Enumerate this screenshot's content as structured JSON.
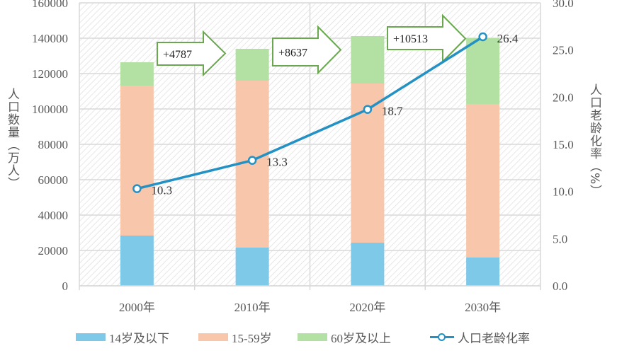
{
  "chart_data": {
    "type": "bar",
    "subtype": "stacked-bar-with-line",
    "categories": [
      "2000年",
      "2010年",
      "2020年",
      "2030年"
    ],
    "series": [
      {
        "name": "14岁及以下",
        "type": "bar",
        "axis": "left",
        "color": "#7EC8E8",
        "values": [
          28400,
          21600,
          24400,
          16000
        ]
      },
      {
        "name": "15-59岁",
        "type": "bar",
        "axis": "left",
        "color": "#F7C6AB",
        "values": [
          84800,
          94400,
          90000,
          86800
        ]
      },
      {
        "name": "60岁及以上",
        "type": "bar",
        "axis": "left",
        "color": "#B3E0A3",
        "values": [
          13200,
          18000,
          26800,
          37200
        ]
      },
      {
        "name": "人口老龄化率",
        "type": "line",
        "axis": "right",
        "color": "#2491C4",
        "values": [
          10.3,
          13.3,
          18.7,
          26.4
        ]
      }
    ],
    "annotations": [
      {
        "text": "+4787",
        "between": [
          "2000年",
          "2010年"
        ]
      },
      {
        "text": "+8637",
        "between": [
          "2010年",
          "2020年"
        ]
      },
      {
        "text": "+10513",
        "between": [
          "2020年",
          "2030年"
        ]
      }
    ],
    "line_labels": [
      "10.3",
      "13.3",
      "18.7",
      "26.4"
    ],
    "title": "",
    "xlabel": "",
    "ylabel": "人口数量（万人）",
    "y2label": "人口老龄化率（%）",
    "ylim": [
      0,
      160000
    ],
    "y2lim": [
      0,
      30
    ],
    "yticks": [
      "0",
      "20000",
      "40000",
      "60000",
      "80000",
      "100000",
      "120000",
      "140000",
      "160000"
    ],
    "y2ticks": [
      "0.0",
      "5.0",
      "10.0",
      "15.0",
      "20.0",
      "25.0",
      "30.0"
    ],
    "grid": true,
    "legend_position": "bottom"
  },
  "axes": {
    "left_title": "人口数量（万人）",
    "right_title": "人口老龄化率（%）"
  },
  "legend": [
    {
      "label": "14岁及以下",
      "kind": "bar",
      "color": "#7EC8E8"
    },
    {
      "label": "15-59岁",
      "kind": "bar",
      "color": "#F7C6AB"
    },
    {
      "label": "60岁及以上",
      "kind": "bar",
      "color": "#B3E0A3"
    },
    {
      "label": "人口老龄化率",
      "kind": "line",
      "color": "#2491C4"
    }
  ],
  "colors": {
    "arrow_border": "#6AA84F",
    "arrow_fill": "#ffffff",
    "grid": "#D9D9D9",
    "hatch": "#DDDDDD",
    "text": "#595959"
  }
}
